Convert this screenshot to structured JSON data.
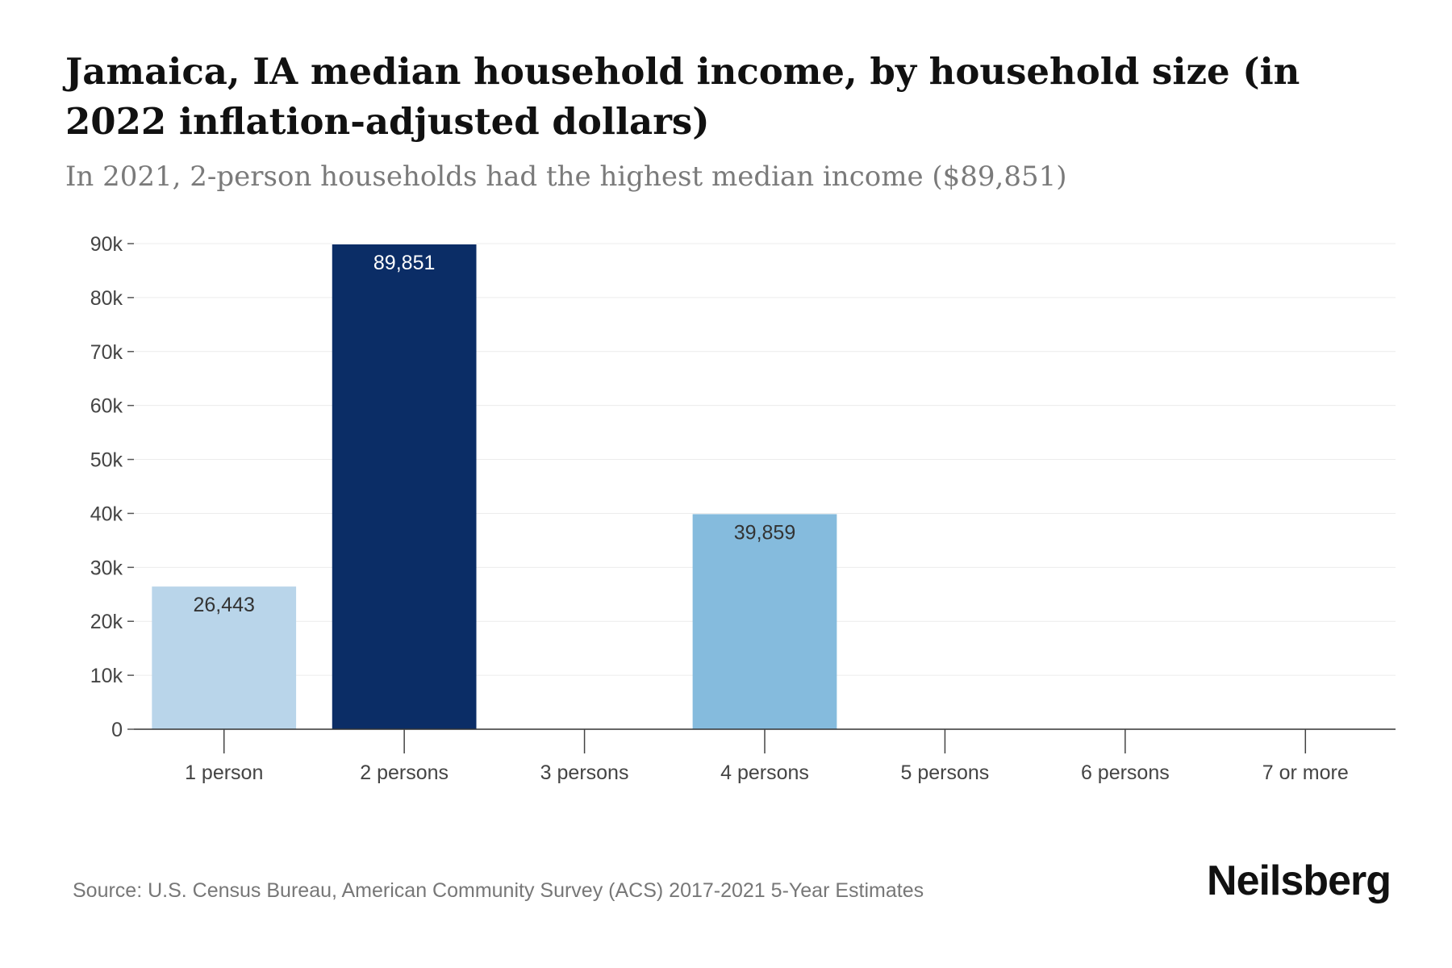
{
  "chart_data": {
    "type": "bar",
    "title": "Jamaica, IA median household income, by household size (in 2022 inflation-adjusted dollars)",
    "subtitle": "In 2021, 2-person households had the highest median income ($89,851)",
    "categories": [
      "1 person",
      "2 persons",
      "3 persons",
      "4 persons",
      "5 persons",
      "6 persons",
      "7 or more"
    ],
    "values": [
      26443,
      89851,
      0,
      39859,
      0,
      0,
      0
    ],
    "value_labels": [
      "26,443",
      "89,851",
      "",
      "39,859",
      "",
      "",
      ""
    ],
    "bar_colors": [
      "#b9d5ea",
      "#0b2d66",
      "#b9d5ea",
      "#85bbdd",
      "#b9d5ea",
      "#b9d5ea",
      "#b9d5ea"
    ],
    "label_colors": [
      "#333333",
      "#ffffff",
      "#333333",
      "#333333",
      "#333333",
      "#333333",
      "#333333"
    ],
    "ylim": [
      0,
      90000
    ],
    "yticks": [
      0,
      10000,
      20000,
      30000,
      40000,
      50000,
      60000,
      70000,
      80000,
      90000
    ],
    "ytick_labels": [
      "0",
      "10k",
      "20k",
      "30k",
      "40k",
      "50k",
      "60k",
      "70k",
      "80k",
      "90k"
    ],
    "xlabel": "",
    "ylabel": "",
    "grid": true
  },
  "source": "Source: U.S. Census Bureau, American Community Survey (ACS) 2017-2021 5-Year Estimates",
  "brand": "Neilsberg"
}
